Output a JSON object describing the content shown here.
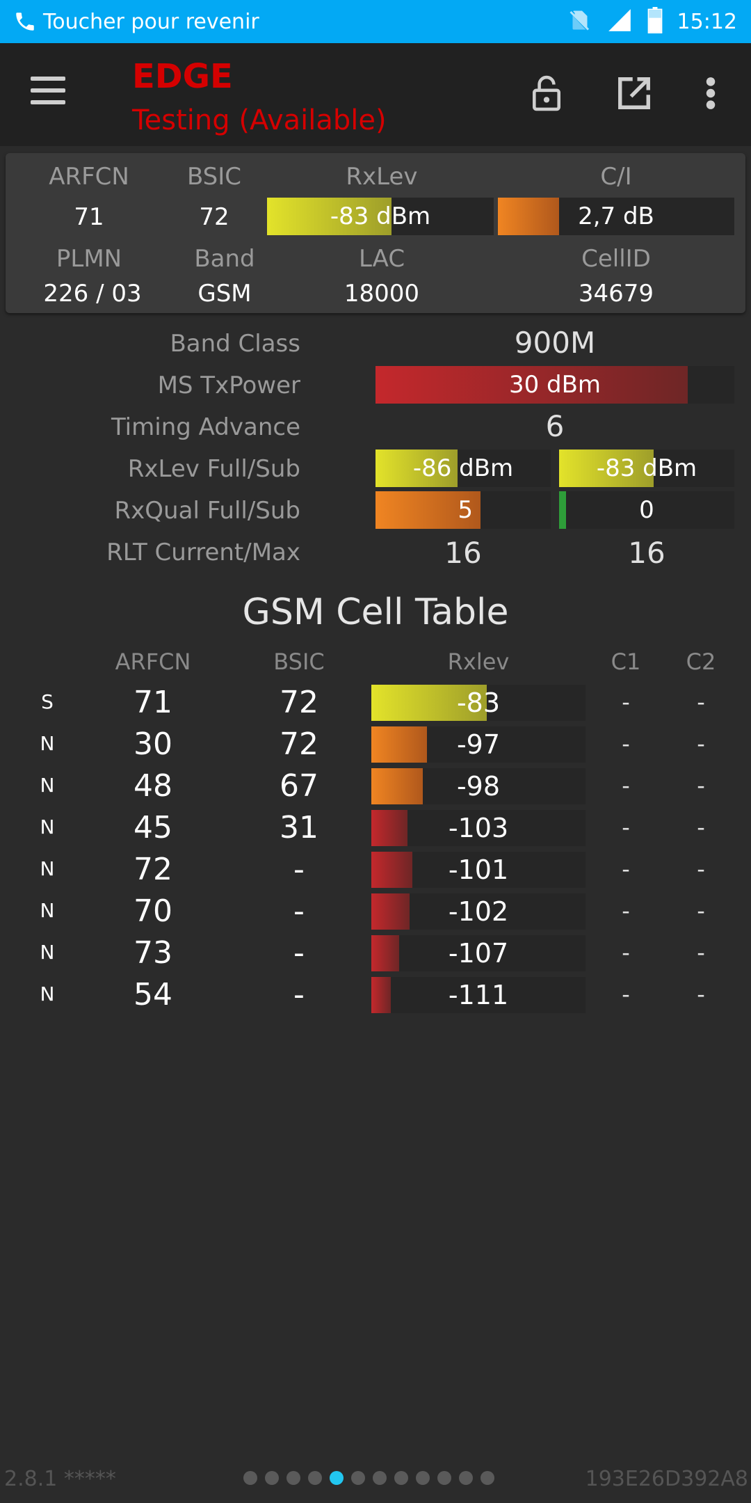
{
  "status_bar": {
    "call_text": "Toucher pour revenir",
    "time": "15:12",
    "icons": [
      "phone-icon",
      "no-sim-icon",
      "signal-icon",
      "battery-icon"
    ]
  },
  "app_bar": {
    "title": "EDGE",
    "subtitle": "Testing (Available)",
    "title_color": "#d50000",
    "icons": [
      "menu-icon",
      "lock-open-icon",
      "open-external-icon",
      "more-vert-icon"
    ]
  },
  "serving": {
    "labels": {
      "arfcn": "ARFCN",
      "bsic": "BSIC",
      "rxlev": "RxLev",
      "ci": "C/I",
      "plmn": "PLMN",
      "band": "Band",
      "lac": "LAC",
      "cellid": "CellID"
    },
    "arfcn": "71",
    "bsic": "72",
    "rxlev_text": "-83 dBm",
    "rxlev_fill": 0.55,
    "ci_text": "2,7 dB",
    "ci_fill": 0.26,
    "plmn": "226 / 03",
    "band": "GSM",
    "lac": "18000",
    "cellid": "34679"
  },
  "params": {
    "band_class_label": "Band Class",
    "band_class": "900M",
    "ms_txpower_label": "MS TxPower",
    "ms_txpower": "30 dBm",
    "ms_txpower_fill": 0.87,
    "timing_advance_label": "Timing Advance",
    "timing_advance": "6",
    "rxlev_fullsub_label": "RxLev Full/Sub",
    "rxlev_full": "-86 dBm",
    "rxlev_full_fill": 0.47,
    "rxlev_sub": "-83 dBm",
    "rxlev_sub_fill": 0.54,
    "rxqual_fullsub_label": "RxQual Full/Sub",
    "rxqual_full": "5",
    "rxqual_full_fill": 0.6,
    "rxqual_sub": "0",
    "rxqual_sub_fill": 0.04,
    "rlt_label": "RLT Current/Max",
    "rlt_current": "16",
    "rlt_max": "16"
  },
  "cell_table": {
    "title": "GSM Cell Table",
    "headers": {
      "arfcn": "ARFCN",
      "bsic": "BSIC",
      "rxlev": "Rxlev",
      "c1": "C1",
      "c2": "C2"
    },
    "rows": [
      {
        "type": "S",
        "arfcn": "71",
        "bsic": "72",
        "rxlev": "-83",
        "fill": 0.54,
        "color": "yellow",
        "c1": "-",
        "c2": "-"
      },
      {
        "type": "N",
        "arfcn": "30",
        "bsic": "72",
        "rxlev": "-97",
        "fill": 0.26,
        "color": "orange",
        "c1": "-",
        "c2": "-"
      },
      {
        "type": "N",
        "arfcn": "48",
        "bsic": "67",
        "rxlev": "-98",
        "fill": 0.24,
        "color": "orange",
        "c1": "-",
        "c2": "-"
      },
      {
        "type": "N",
        "arfcn": "45",
        "bsic": "31",
        "rxlev": "-103",
        "fill": 0.17,
        "color": "red",
        "c1": "-",
        "c2": "-"
      },
      {
        "type": "N",
        "arfcn": "72",
        "bsic": "-",
        "rxlev": "-101",
        "fill": 0.19,
        "color": "red",
        "c1": "-",
        "c2": "-"
      },
      {
        "type": "N",
        "arfcn": "70",
        "bsic": "-",
        "rxlev": "-102",
        "fill": 0.18,
        "color": "red",
        "c1": "-",
        "c2": "-"
      },
      {
        "type": "N",
        "arfcn": "73",
        "bsic": "-",
        "rxlev": "-107",
        "fill": 0.13,
        "color": "red",
        "c1": "-",
        "c2": "-"
      },
      {
        "type": "N",
        "arfcn": "54",
        "bsic": "-",
        "rxlev": "-111",
        "fill": 0.09,
        "color": "red",
        "c1": "-",
        "c2": "-"
      }
    ]
  },
  "footer": {
    "version": "2.8.1 *****",
    "device_id": "193E26D392A8",
    "page_count": 12,
    "active_page": 5
  }
}
